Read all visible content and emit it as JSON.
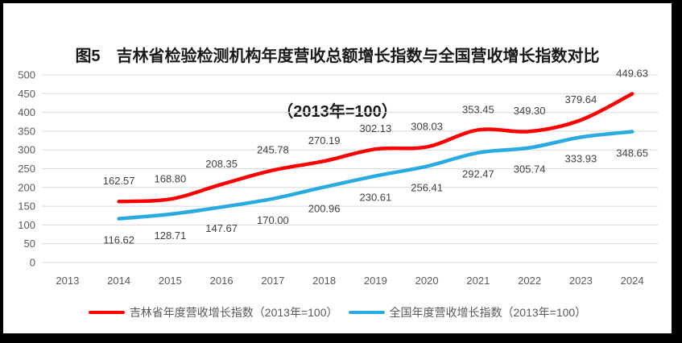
{
  "title": {
    "line1": "图5　吉林省检验检测机构年度营收总额增长指数与全国营收增长指数对比",
    "line2": "（2013年=100）"
  },
  "chart_data": {
    "type": "line",
    "categories": [
      "2013",
      "2014",
      "2015",
      "2016",
      "2017",
      "2018",
      "2019",
      "2020",
      "2021",
      "2022",
      "2023",
      "2024"
    ],
    "series": [
      {
        "name": "吉林省年度营收增长指数（2013年=100）",
        "color": "#FF0000",
        "label_position": "above",
        "values": [
          null,
          162.57,
          168.8,
          208.35,
          245.78,
          270.19,
          302.13,
          308.03,
          353.45,
          349.3,
          379.64,
          449.63
        ]
      },
      {
        "name": "全国年度营收增长指数（2013年=100）",
        "color": "#29ABE2",
        "label_position": "below",
        "values": [
          null,
          116.62,
          128.71,
          147.67,
          170.0,
          200.96,
          230.61,
          256.41,
          292.47,
          305.74,
          333.93,
          348.65
        ]
      }
    ],
    "ylim": [
      0,
      500
    ],
    "ytick_step": 50,
    "grid": true,
    "smooth": true,
    "legend_position": "bottom",
    "label_decimals": 2
  },
  "style_colors": {
    "gridline": "#D9D9D9",
    "axis_label": "#595959",
    "data_label": "#404040"
  }
}
